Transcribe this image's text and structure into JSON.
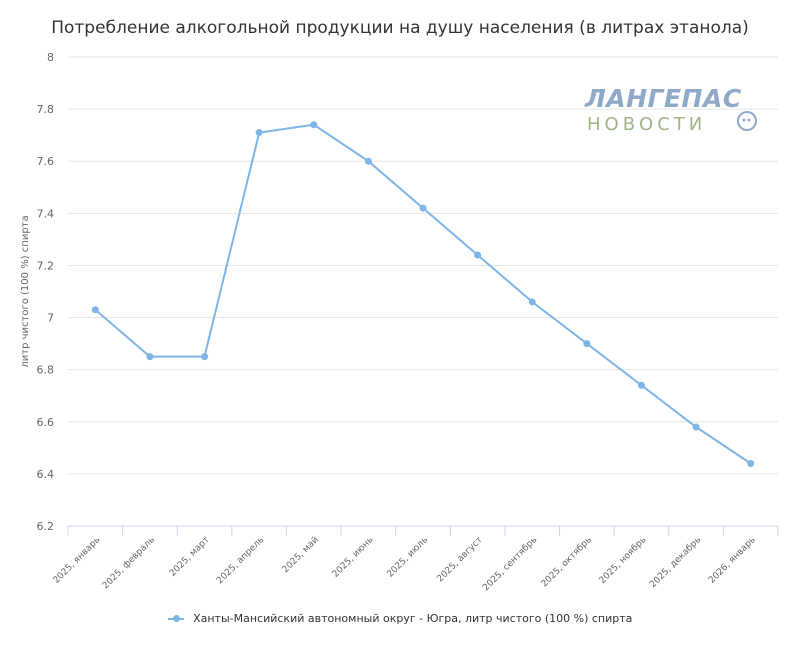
{
  "chart_data": {
    "type": "line",
    "title": "Потребление алкогольной продукции на душу населения (в литрах этанола)",
    "ylabel": "литр чистого (100 %) спирта",
    "xlabel": "",
    "categories": [
      "2025, январь",
      "2025, февраль",
      "2025, март",
      "2025, апрель",
      "2025, май",
      "2025, июнь",
      "2025, июль",
      "2025, август",
      "2025, сентябрь",
      "2025, октябрь",
      "2025, ноябрь",
      "2025, декабрь",
      "2026, январь"
    ],
    "series": [
      {
        "name": "Ханты-Мансийский автономный округ - Югра, литр чистого (100 %) спирта",
        "values": [
          7.03,
          6.85,
          6.85,
          7.71,
          7.74,
          7.6,
          7.42,
          7.24,
          7.06,
          6.9,
          6.74,
          6.58,
          6.44
        ],
        "color": "#7eb5e6"
      }
    ],
    "ylim": [
      6.2,
      8
    ],
    "yticks": [
      "6.2",
      "6.4",
      "6.6",
      "6.8",
      "7",
      "7.2",
      "7.4",
      "7.6",
      "7.8",
      "8"
    ],
    "grid": true,
    "legend_position": "bottom"
  },
  "watermark": {
    "line1": "ЛАНГЕПАС",
    "line2": "НОВОСТИ",
    "colors": {
      "top": "#8fa9c8",
      "bottom": "#9fb48a"
    }
  }
}
